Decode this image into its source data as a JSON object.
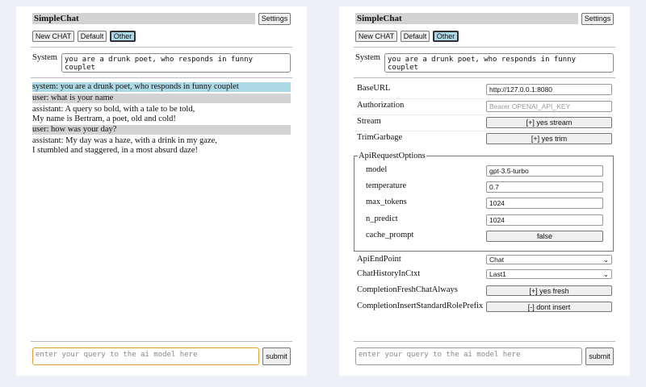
{
  "app": {
    "title": "SimpleChat",
    "settings": "Settings",
    "buttons": [
      "New CHAT",
      "Default",
      "Other"
    ],
    "system_label": "System",
    "system_value": "you are a drunk poet, who responds in funny couplet",
    "query_placeholder": "enter your query to the ai model here",
    "submit": "submit"
  },
  "chat": [
    {
      "role": "system",
      "text": "system: you are a drunk poet, who responds in funny couplet"
    },
    {
      "role": "user",
      "text": "user: what is your name"
    },
    {
      "role": "assistant",
      "text": "assistant: A query so bold, with a tale to be told,",
      "text2": "My name is Bertram, a poet, old and cold!"
    },
    {
      "role": "user",
      "text": "user: how was your day?"
    },
    {
      "role": "assistant",
      "text": "assistant: My day was a haze, with a drink in my gaze,",
      "text2": "I stumbled and staggered, in a most absurd daze!"
    }
  ],
  "settings": {
    "baseurl": {
      "label": "BaseURL",
      "value": "http://127.0.0.1:8080"
    },
    "authorization": {
      "label": "Authorization",
      "placeholder": "Bearer OPENAI_API_KEY"
    },
    "stream": {
      "label": "Stream",
      "value": "[+] yes stream"
    },
    "trim": {
      "label": "TrimGarbage",
      "value": "[+] yes trim"
    },
    "api_options": {
      "legend": "ApiRequestOptions",
      "model": {
        "label": "model",
        "value": "gpt-3.5-turbo"
      },
      "temperature": {
        "label": "temperature",
        "value": "0.7"
      },
      "max_tokens": {
        "label": "max_tokens",
        "value": "1024"
      },
      "n_predict": {
        "label": "n_predict",
        "value": "1024"
      },
      "cache_prompt": {
        "label": "cache_prompt",
        "value": "false"
      }
    },
    "endpoint": {
      "label": "ApiEndPoint",
      "value": "Chat"
    },
    "history": {
      "label": "ChatHistoryInCtxt",
      "value": "Last1"
    },
    "fresh": {
      "label": "CompletionFreshChatAlways",
      "value": "[+] yes fresh"
    },
    "insert": {
      "label": "CompletionInsertStandardRolePrefix",
      "value": "[-] dont insert"
    }
  }
}
